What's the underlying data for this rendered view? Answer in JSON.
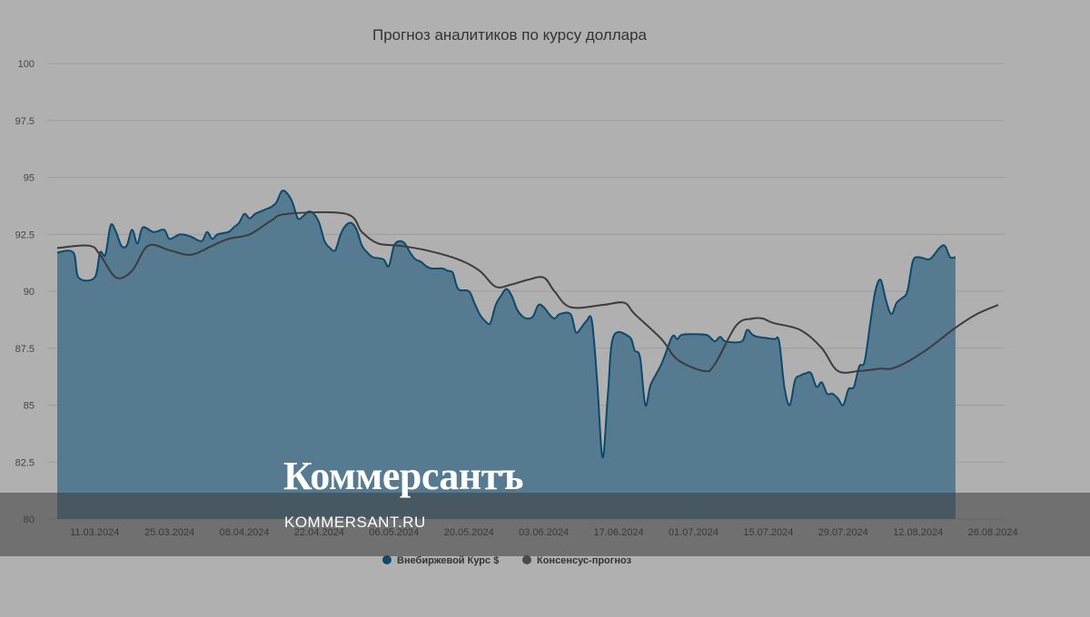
{
  "chart_data": {
    "type": "area",
    "title": "Прогноз аналитиков по курсу доллара",
    "xlabel": "",
    "ylabel": "",
    "ylim": [
      80,
      100
    ],
    "y_ticks": [
      "80",
      "82.5",
      "85",
      "87.5",
      "90",
      "92.5",
      "95",
      "97.5",
      "100"
    ],
    "x_ticks": [
      "11.03.2024",
      "25.03.2024",
      "08.04.2024",
      "22.04.2024",
      "06.05.2024",
      "20.05.2024",
      "03.06.2024",
      "17.06.2024",
      "01.07.2024",
      "15.07.2024",
      "29.07.2024",
      "12.08.2024",
      "26.08.2024"
    ],
    "grid": true,
    "legend_position": "bottom",
    "series": [
      {
        "name": "Внебиржевой Курс $",
        "kind": "area",
        "color": "#0b4a6e",
        "fill": "#567a90",
        "values": [
          [
            "2024-03-04",
            91.7
          ],
          [
            "2024-03-07",
            91.7
          ],
          [
            "2024-03-08",
            90.6
          ],
          [
            "2024-03-11",
            90.6
          ],
          [
            "2024-03-12",
            91.7
          ],
          [
            "2024-03-13",
            91.6
          ],
          [
            "2024-03-14",
            92.9
          ],
          [
            "2024-03-15",
            92.6
          ],
          [
            "2024-03-16",
            92.0
          ],
          [
            "2024-03-17",
            92.0
          ],
          [
            "2024-03-18",
            92.7
          ],
          [
            "2024-03-19",
            92.1
          ],
          [
            "2024-03-20",
            92.8
          ],
          [
            "2024-03-22",
            92.6
          ],
          [
            "2024-03-24",
            92.7
          ],
          [
            "2024-03-25",
            92.3
          ],
          [
            "2024-03-27",
            92.5
          ],
          [
            "2024-03-29",
            92.4
          ],
          [
            "2024-03-31",
            92.2
          ],
          [
            "2024-04-01",
            92.6
          ],
          [
            "2024-04-02",
            92.3
          ],
          [
            "2024-04-03",
            92.5
          ],
          [
            "2024-04-05",
            92.6
          ],
          [
            "2024-04-06",
            92.8
          ],
          [
            "2024-04-07",
            93.0
          ],
          [
            "2024-04-08",
            93.4
          ],
          [
            "2024-04-09",
            93.2
          ],
          [
            "2024-04-10",
            93.4
          ],
          [
            "2024-04-11",
            93.5
          ],
          [
            "2024-04-12",
            93.6
          ],
          [
            "2024-04-13",
            93.7
          ],
          [
            "2024-04-14",
            93.9
          ],
          [
            "2024-04-15",
            94.4
          ],
          [
            "2024-04-16",
            94.3
          ],
          [
            "2024-04-17",
            93.9
          ],
          [
            "2024-04-18",
            93.2
          ],
          [
            "2024-04-19",
            93.3
          ],
          [
            "2024-04-20",
            93.5
          ],
          [
            "2024-04-21",
            93.4
          ],
          [
            "2024-04-22",
            93.0
          ],
          [
            "2024-04-23",
            92.2
          ],
          [
            "2024-04-24",
            91.9
          ],
          [
            "2024-04-25",
            91.8
          ],
          [
            "2024-04-26",
            92.5
          ],
          [
            "2024-04-27",
            92.9
          ],
          [
            "2024-04-28",
            93.0
          ],
          [
            "2024-04-29",
            92.7
          ],
          [
            "2024-04-30",
            92.0
          ],
          [
            "2024-05-01",
            91.7
          ],
          [
            "2024-05-02",
            91.5
          ],
          [
            "2024-05-04",
            91.4
          ],
          [
            "2024-05-05",
            91.1
          ],
          [
            "2024-05-06",
            92.0
          ],
          [
            "2024-05-07",
            92.2
          ],
          [
            "2024-05-08",
            92.1
          ],
          [
            "2024-05-09",
            91.7
          ],
          [
            "2024-05-10",
            91.4
          ],
          [
            "2024-05-11",
            91.3
          ],
          [
            "2024-05-12",
            91.1
          ],
          [
            "2024-05-13",
            91.0
          ],
          [
            "2024-05-15",
            91.0
          ],
          [
            "2024-05-16",
            90.9
          ],
          [
            "2024-05-17",
            90.8
          ],
          [
            "2024-05-18",
            90.1
          ],
          [
            "2024-05-20",
            90.0
          ],
          [
            "2024-05-21",
            89.5
          ],
          [
            "2024-05-22",
            89.0
          ],
          [
            "2024-05-23",
            88.7
          ],
          [
            "2024-05-24",
            88.6
          ],
          [
            "2024-05-25",
            89.4
          ],
          [
            "2024-05-26",
            89.8
          ],
          [
            "2024-05-27",
            90.1
          ],
          [
            "2024-05-28",
            89.8
          ],
          [
            "2024-05-29",
            89.2
          ],
          [
            "2024-05-30",
            88.9
          ],
          [
            "2024-05-31",
            88.8
          ],
          [
            "2024-06-01",
            88.9
          ],
          [
            "2024-06-02",
            89.4
          ],
          [
            "2024-06-03",
            89.3
          ],
          [
            "2024-06-04",
            89.0
          ],
          [
            "2024-06-05",
            88.8
          ],
          [
            "2024-06-06",
            89.0
          ],
          [
            "2024-06-08",
            89.0
          ],
          [
            "2024-06-09",
            88.2
          ],
          [
            "2024-06-10",
            88.4
          ],
          [
            "2024-06-11",
            88.7
          ],
          [
            "2024-06-12",
            88.7
          ],
          [
            "2024-06-13",
            86.0
          ],
          [
            "2024-06-14",
            82.7
          ],
          [
            "2024-06-15",
            85.5
          ],
          [
            "2024-06-16",
            88.0
          ],
          [
            "2024-06-19",
            88.0
          ],
          [
            "2024-06-20",
            87.4
          ],
          [
            "2024-06-21",
            87.1
          ],
          [
            "2024-06-22",
            85.0
          ],
          [
            "2024-06-23",
            85.9
          ],
          [
            "2024-06-25",
            86.8
          ],
          [
            "2024-06-27",
            88.0
          ],
          [
            "2024-06-28",
            87.9
          ],
          [
            "2024-06-29",
            88.1
          ],
          [
            "2024-07-03",
            88.1
          ],
          [
            "2024-07-04",
            88.0
          ],
          [
            "2024-07-05",
            87.8
          ],
          [
            "2024-07-06",
            88.0
          ],
          [
            "2024-07-07",
            87.8
          ],
          [
            "2024-07-10",
            87.8
          ],
          [
            "2024-07-11",
            88.3
          ],
          [
            "2024-07-12",
            88.1
          ],
          [
            "2024-07-13",
            88.0
          ],
          [
            "2024-07-16",
            87.9
          ],
          [
            "2024-07-17",
            87.8
          ],
          [
            "2024-07-18",
            85.8
          ],
          [
            "2024-07-19",
            85.0
          ],
          [
            "2024-07-20",
            86.1
          ],
          [
            "2024-07-21",
            86.3
          ],
          [
            "2024-07-22",
            86.4
          ],
          [
            "2024-07-23",
            86.4
          ],
          [
            "2024-07-24",
            85.8
          ],
          [
            "2024-07-25",
            86.0
          ],
          [
            "2024-07-26",
            85.5
          ],
          [
            "2024-07-27",
            85.5
          ],
          [
            "2024-07-28",
            85.3
          ],
          [
            "2024-07-29",
            85.0
          ],
          [
            "2024-07-30",
            85.7
          ],
          [
            "2024-07-31",
            85.8
          ],
          [
            "2024-08-01",
            86.7
          ],
          [
            "2024-08-02",
            86.9
          ],
          [
            "2024-08-03",
            88.5
          ],
          [
            "2024-08-04",
            90.0
          ],
          [
            "2024-08-05",
            90.5
          ],
          [
            "2024-08-06",
            89.6
          ],
          [
            "2024-08-07",
            89.0
          ],
          [
            "2024-08-08",
            89.5
          ],
          [
            "2024-08-09",
            89.7
          ],
          [
            "2024-08-10",
            90.0
          ],
          [
            "2024-08-11",
            91.3
          ],
          [
            "2024-08-12",
            91.5
          ],
          [
            "2024-08-14",
            91.4
          ],
          [
            "2024-08-15",
            91.6
          ],
          [
            "2024-08-16",
            91.9
          ],
          [
            "2024-08-17",
            92.0
          ],
          [
            "2024-08-18",
            91.5
          ],
          [
            "2024-08-19",
            91.5
          ]
        ]
      },
      {
        "name": "Консенсус-прогноз",
        "kind": "line",
        "color": "#3c3c3c",
        "values": [
          [
            "2024-03-04",
            91.9
          ],
          [
            "2024-03-10",
            92.0
          ],
          [
            "2024-03-12",
            91.6
          ],
          [
            "2024-03-15",
            90.6
          ],
          [
            "2024-03-18",
            90.9
          ],
          [
            "2024-03-21",
            92.0
          ],
          [
            "2024-03-25",
            91.8
          ],
          [
            "2024-03-29",
            91.6
          ],
          [
            "2024-04-02",
            92.0
          ],
          [
            "2024-04-05",
            92.3
          ],
          [
            "2024-04-09",
            92.5
          ],
          [
            "2024-04-13",
            93.1
          ],
          [
            "2024-04-16",
            93.4
          ],
          [
            "2024-04-27",
            93.4
          ],
          [
            "2024-04-30",
            92.6
          ],
          [
            "2024-05-03",
            92.1
          ],
          [
            "2024-05-07",
            92.0
          ],
          [
            "2024-05-12",
            91.8
          ],
          [
            "2024-05-18",
            91.4
          ],
          [
            "2024-05-22",
            90.9
          ],
          [
            "2024-05-25",
            90.2
          ],
          [
            "2024-05-28",
            90.3
          ],
          [
            "2024-05-31",
            90.5
          ],
          [
            "2024-06-03",
            90.6
          ],
          [
            "2024-06-05",
            90.0
          ],
          [
            "2024-06-08",
            89.3
          ],
          [
            "2024-06-14",
            89.4
          ],
          [
            "2024-06-18",
            89.5
          ],
          [
            "2024-06-20",
            89.0
          ],
          [
            "2024-06-25",
            87.9
          ],
          [
            "2024-06-28",
            87.0
          ],
          [
            "2024-07-03",
            86.5
          ],
          [
            "2024-07-05",
            86.8
          ],
          [
            "2024-07-09",
            88.5
          ],
          [
            "2024-07-12",
            88.8
          ],
          [
            "2024-07-14",
            88.8
          ],
          [
            "2024-07-16",
            88.6
          ],
          [
            "2024-07-21",
            88.3
          ],
          [
            "2024-07-25",
            87.5
          ],
          [
            "2024-07-28",
            86.5
          ],
          [
            "2024-08-01",
            86.5
          ],
          [
            "2024-08-05",
            86.6
          ],
          [
            "2024-08-07",
            86.6
          ],
          [
            "2024-08-10",
            86.9
          ],
          [
            "2024-08-14",
            87.5
          ],
          [
            "2024-08-19",
            88.4
          ],
          [
            "2024-08-23",
            89.0
          ],
          [
            "2024-08-27",
            89.4
          ]
        ]
      }
    ]
  },
  "brand": {
    "logo": "Коммерсантъ",
    "url": "KOMMERSANT.RU"
  }
}
